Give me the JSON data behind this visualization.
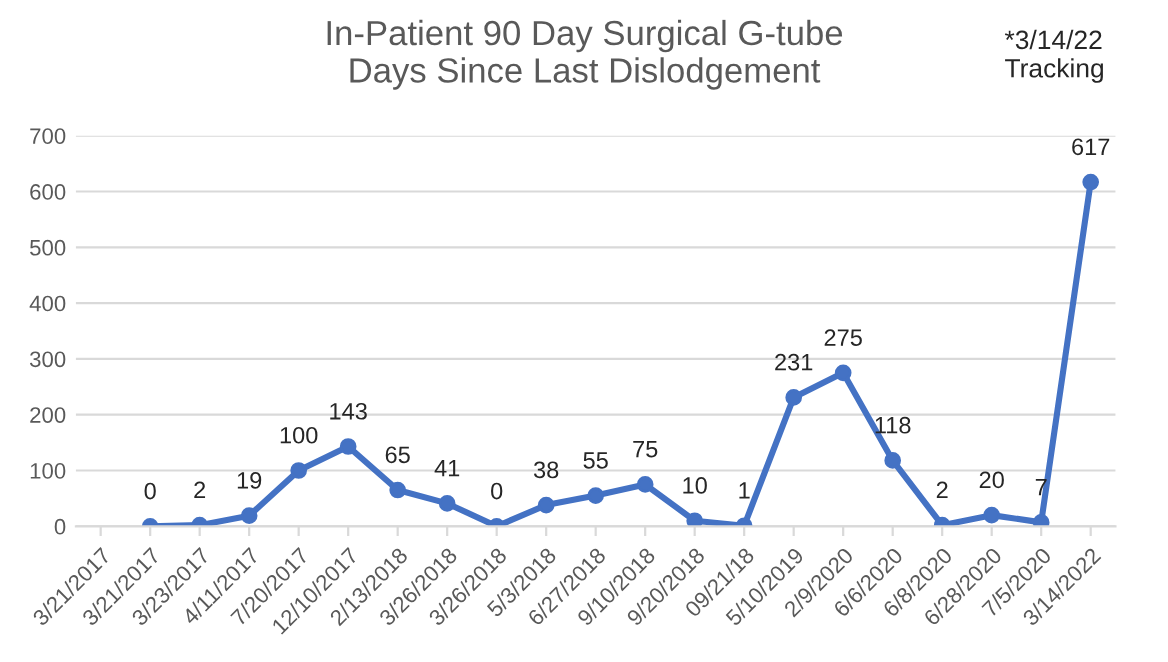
{
  "chart_data": {
    "type": "line",
    "title": "In-Patient 90 Day Surgical G-tube\nDays Since Last Dislodgement",
    "categories": [
      "3/21/2017",
      "3/21/2017",
      "3/23/2017",
      "4/11/2017",
      "7/20/2017",
      "12/10/2017",
      "2/13/2018",
      "3/26/2018",
      "3/26/2018",
      "5/3/2018",
      "6/27/2018",
      "9/10/2018",
      "9/20/2018",
      "09/21/18",
      "5/10/2019",
      "2/9/2020",
      "6/6/2020",
      "6/8/2020",
      "6/28/2020",
      "7/5/2020",
      "3/14/2022"
    ],
    "series": [
      {
        "color": "#4472c4",
        "values": [
          null,
          0,
          2,
          19,
          100,
          143,
          65,
          41,
          0,
          38,
          55,
          75,
          10,
          1,
          231,
          275,
          118,
          2,
          20,
          7,
          617
        ]
      }
    ],
    "ylim": [
      0,
      700
    ],
    "yticks": [
      0,
      100,
      200,
      300,
      400,
      500,
      600,
      700
    ],
    "grid": "y",
    "marker": "circle",
    "line_style": "solid",
    "data_labels": true,
    "annotations": [
      "*3/14/22\nTracking"
    ]
  }
}
